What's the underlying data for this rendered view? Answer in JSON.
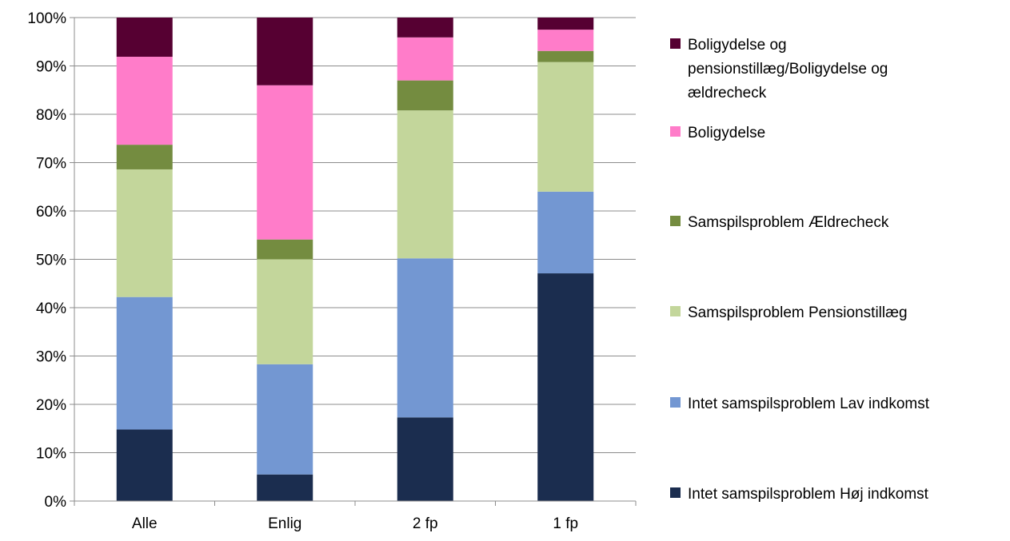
{
  "chart_data": {
    "type": "bar",
    "stacked": true,
    "percent": true,
    "categories": [
      "Alle",
      "Enlig",
      "2 fp",
      "1 fp"
    ],
    "ylim": [
      0,
      100
    ],
    "yticks": [
      "0%",
      "10%",
      "20%",
      "30%",
      "40%",
      "50%",
      "60%",
      "70%",
      "80%",
      "90%",
      "100%"
    ],
    "grid": true,
    "legend_position": "right",
    "series": [
      {
        "name": "Intet samspilsproblem Høj indkomst",
        "color": "#1b2d4f",
        "values": [
          14.8,
          5.5,
          17.3,
          47.1
        ]
      },
      {
        "name": "Intet samspilsproblem Lav indkomst",
        "color": "#7397d2",
        "values": [
          27.4,
          22.8,
          32.9,
          16.9
        ]
      },
      {
        "name": "Samspilsproblem Pensionstillæg",
        "color": "#c3d69b",
        "values": [
          26.4,
          21.7,
          30.6,
          26.8
        ]
      },
      {
        "name": "Samspilsproblem Ældrecheck",
        "color": "#748c40",
        "values": [
          5.1,
          4.1,
          6.2,
          2.3
        ]
      },
      {
        "name": "Boligydelse",
        "color": "#ff7cc9",
        "values": [
          18.2,
          31.9,
          8.9,
          4.4
        ]
      },
      {
        "name": "Boligydelse og pensionstillæg/Boligydelse og ældrecheck",
        "color": "#560032",
        "values": [
          8.1,
          14.0,
          4.1,
          2.5
        ]
      }
    ],
    "legend_lines": [
      [
        "Boligydelse og",
        "pensionstillæg/Boligydelse og",
        "ældrecheck"
      ],
      [
        "Boligydelse"
      ],
      [
        "Samspilsproblem Ældrecheck"
      ],
      [
        "Samspilsproblem Pensionstillæg"
      ],
      [
        "Intet samspilsproblem Lav indkomst"
      ],
      [
        "Intet samspilsproblem Høj indkomst"
      ]
    ]
  }
}
